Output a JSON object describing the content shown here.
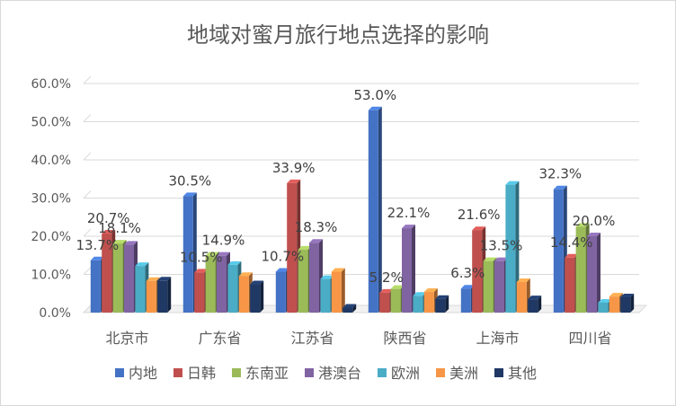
{
  "chart_data": {
    "type": "bar",
    "title": "地域对蜜月旅行地点选择的影响",
    "categories": [
      "北京市",
      "广东省",
      "江苏省",
      "陕西省",
      "上海市",
      "四川省"
    ],
    "ylim": [
      0,
      60
    ],
    "y_ticks": [
      "0.0%",
      "10.0%",
      "20.0%",
      "30.0%",
      "40.0%",
      "50.0%",
      "60.0%"
    ],
    "grid": true,
    "legend_position": "bottom",
    "series": [
      {
        "name": "内地",
        "color": "#4472c4",
        "values": [
          13.7,
          30.5,
          10.7,
          53.0,
          6.3,
          32.3
        ]
      },
      {
        "name": "日韩",
        "color": "#c0504d",
        "values": [
          20.7,
          10.5,
          33.9,
          5.2,
          21.6,
          14.4
        ]
      },
      {
        "name": "东南亚",
        "color": "#9bbb59",
        "values": [
          18.1,
          14.9,
          16.5,
          6.2,
          13.5,
          22.5
        ]
      },
      {
        "name": "港澳台",
        "color": "#8064a2",
        "values": [
          17.8,
          14.9,
          18.3,
          22.1,
          13.5,
          20.0
        ]
      },
      {
        "name": "欧洲",
        "color": "#4bacc6",
        "values": [
          12.2,
          12.5,
          8.8,
          4.4,
          33.5,
          2.6
        ]
      },
      {
        "name": "美洲",
        "color": "#f79646",
        "values": [
          8.3,
          9.6,
          10.7,
          5.4,
          8.0,
          4.2
        ]
      },
      {
        "name": "其他",
        "color": "#1f3864",
        "values": [
          8.4,
          7.4,
          1.3,
          3.6,
          3.5,
          4.0
        ]
      }
    ],
    "data_labels": [
      {
        "category": 0,
        "series": 0,
        "text": "13.7%"
      },
      {
        "category": 0,
        "series": 1,
        "text": "20.7%"
      },
      {
        "category": 0,
        "series": 2,
        "text": "18.1%"
      },
      {
        "category": 1,
        "series": 0,
        "text": "30.5%"
      },
      {
        "category": 1,
        "series": 1,
        "text": "10.5%"
      },
      {
        "category": 1,
        "series": 3,
        "text": "14.9%"
      },
      {
        "category": 2,
        "series": 0,
        "text": "10.7%"
      },
      {
        "category": 2,
        "series": 1,
        "text": "33.9%"
      },
      {
        "category": 2,
        "series": 3,
        "text": "18.3%"
      },
      {
        "category": 3,
        "series": 0,
        "text": "53.0%"
      },
      {
        "category": 3,
        "series": 1,
        "text": "5.2%"
      },
      {
        "category": 3,
        "series": 3,
        "text": "22.1%"
      },
      {
        "category": 4,
        "series": 0,
        "text": "6.3%"
      },
      {
        "category": 4,
        "series": 1,
        "text": "21.6%"
      },
      {
        "category": 4,
        "series": 3,
        "text": "13.5%"
      },
      {
        "category": 5,
        "series": 0,
        "text": "32.3%"
      },
      {
        "category": 5,
        "series": 1,
        "text": "14.4%"
      },
      {
        "category": 5,
        "series": 3,
        "text": "20.0%"
      }
    ]
  }
}
